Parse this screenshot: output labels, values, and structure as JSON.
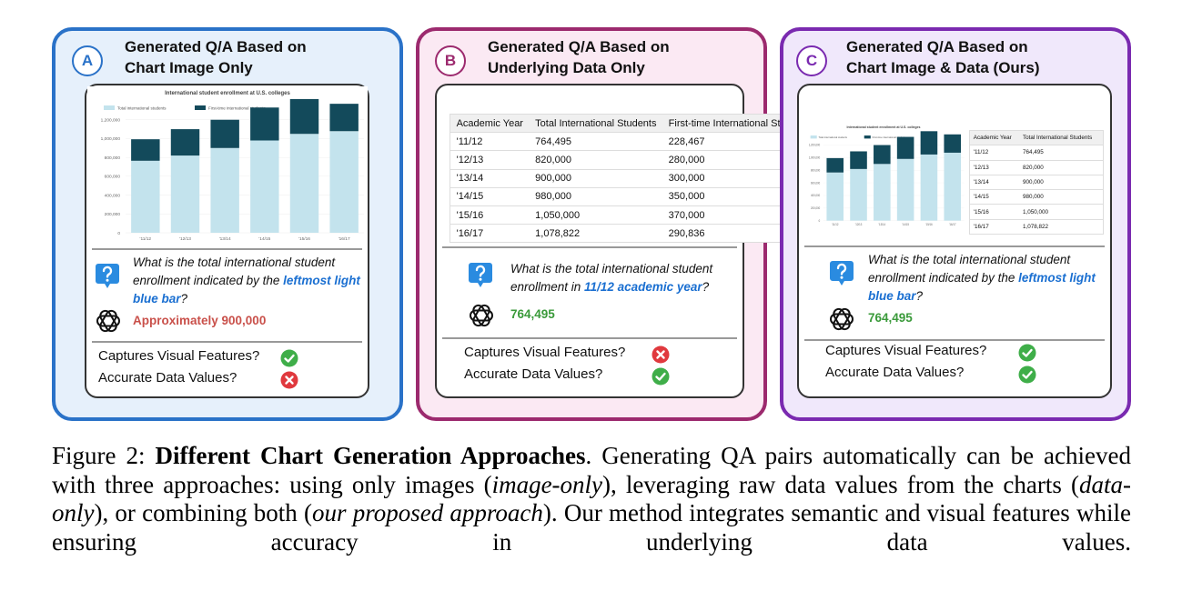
{
  "panels": [
    {
      "letter": "A",
      "title": [
        "Generated Q/A Based on",
        "Chart Image Only"
      ],
      "chart": {
        "type": "bar",
        "stacked": true,
        "title": "International student enrollment at U.S. colleges",
        "categories": [
          "'11/12",
          "'12/13",
          "'13/14",
          "'14/15",
          "'15/16",
          "'16/17"
        ],
        "series": [
          {
            "name": "Total international students",
            "color": "#c3e3ed",
            "values": [
              764495,
              820000,
              900000,
              980000,
              1050000,
              1078822
            ]
          },
          {
            "name": "First-time international students",
            "color": "#134a5b",
            "values": [
              228467,
              280000,
              300000,
              350000,
              370000,
              290836
            ]
          }
        ],
        "ylim": [
          0,
          1400000
        ],
        "yticks": [
          0,
          {
            "value": 200000,
            "label": "200,000"
          },
          {
            "value": 400000,
            "label": "400,000"
          },
          {
            "value": 600000,
            "label": "600,000"
          },
          {
            "value": 800000,
            "label": "800,000"
          },
          {
            "value": 1000000,
            "label": "1,000,000"
          },
          {
            "value": 1200000,
            "label": "1,200,000"
          }
        ]
      },
      "question": [
        {
          "text": "What is the total international student enrollment indicated by the "
        },
        {
          "text": "leftmost light blue bar",
          "style": "highlight"
        },
        {
          "text": "?"
        }
      ],
      "answer": {
        "text": "Approximately 900,000",
        "correct": false
      },
      "checks": [
        {
          "label": "Captures Visual Features?",
          "pass": true
        },
        {
          "label": "Accurate Data Values?",
          "pass": false
        }
      ]
    },
    {
      "letter": "B",
      "title": [
        "Generated Q/A Based on",
        "Underlying Data Only"
      ],
      "table": {
        "columns": [
          "Academic Year",
          "Total International Students",
          "First-time International Students"
        ],
        "rows": [
          [
            "'11/12",
            "764,495",
            "228,467"
          ],
          [
            "'12/13",
            "820,000",
            "280,000"
          ],
          [
            "'13/14",
            "900,000",
            "300,000"
          ],
          [
            "'14/15",
            "980,000",
            "350,000"
          ],
          [
            "'15/16",
            "1,050,000",
            "370,000"
          ],
          [
            "'16/17",
            "1,078,822",
            "290,836"
          ]
        ]
      },
      "question": [
        {
          "text": "What is the total international student enrollment in "
        },
        {
          "text": "11/12 academic year",
          "style": "highlight"
        },
        {
          "text": "?"
        }
      ],
      "answer": {
        "text": "764,495",
        "correct": true
      },
      "checks": [
        {
          "label": "Captures Visual Features?",
          "pass": false
        },
        {
          "label": "Accurate Data Values?",
          "pass": true
        }
      ]
    },
    {
      "letter": "C",
      "title": [
        "Generated Q/A Based on",
        "Chart Image & Data (Ours)"
      ],
      "question": [
        {
          "text": "What is the total international student enrollment indicated by the "
        },
        {
          "text": "leftmost light blue bar",
          "style": "highlight"
        },
        {
          "text": "?"
        }
      ],
      "answer": {
        "text": "764,495",
        "correct": true
      },
      "checks": [
        {
          "label": "Captures Visual Features?",
          "pass": true
        },
        {
          "label": "Accurate Data Values?",
          "pass": true
        }
      ]
    }
  ],
  "caption": [
    {
      "text": "Figure 2: "
    },
    {
      "text": "Different Chart Generation Approaches",
      "style": "bold"
    },
    {
      "text": ". Generating QA pairs automatically can be achieved with three approaches: using only images ("
    },
    {
      "text": "image-only",
      "style": "italic"
    },
    {
      "text": "), leveraging raw data values from the charts ("
    },
    {
      "text": "data-only",
      "style": "italic"
    },
    {
      "text": "), or combining both ("
    },
    {
      "text": "our proposed approach",
      "style": "italic"
    },
    {
      "text": "). Our method integrates semantic and visual features while ensuring accuracy in underlying data values."
    }
  ]
}
